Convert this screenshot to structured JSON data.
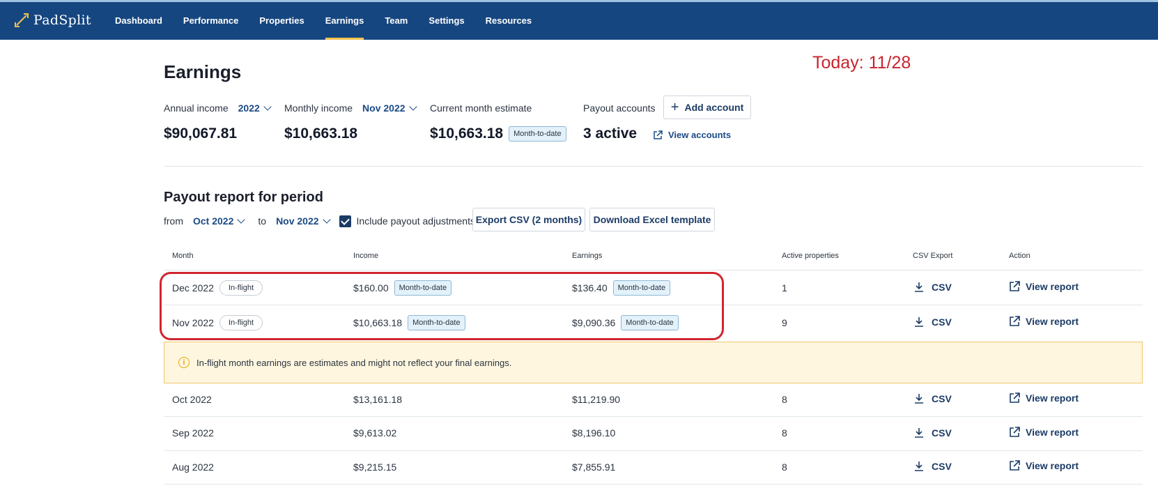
{
  "nav": {
    "brand": "PadSplit",
    "items": [
      "Dashboard",
      "Performance",
      "Properties",
      "Earnings",
      "Team",
      "Settings",
      "Resources"
    ],
    "active": "Earnings",
    "accent_color": "#f3c24e",
    "background_color": "#154680"
  },
  "header": {
    "title": "Earnings",
    "annotation": "Today: 11/28"
  },
  "stats": {
    "annual": {
      "label": "Annual income",
      "selected": "2022",
      "value": "$90,067.81"
    },
    "monthly": {
      "label": "Monthly income",
      "selected": "Nov 2022",
      "value": "$10,663.18"
    },
    "current": {
      "label": "Current month estimate",
      "value": "$10,663.18",
      "badge": "Month-to-date"
    },
    "payout": {
      "label": "Payout accounts",
      "add_button": "Add account",
      "value": "3 active",
      "view_link": "View accounts"
    }
  },
  "report": {
    "title": "Payout report for period",
    "from_label": "from",
    "from_value": "Oct 2022",
    "to_label": "to",
    "to_value": "Nov 2022",
    "include_adjustments_label": "Include payout adjustments",
    "include_adjustments_checked": true,
    "export_button": "Export CSV (2 months)",
    "template_button": "Download Excel template"
  },
  "table": {
    "columns": [
      "Month",
      "Income",
      "Earnings",
      "Active properties",
      "CSV Export",
      "Action"
    ],
    "csv_label": "CSV",
    "action_label": "View report",
    "rows": [
      {
        "month": "Dec 2022",
        "status": "In-flight",
        "income": "$160.00",
        "income_badge": "Month-to-date",
        "earnings": "$136.40",
        "earnings_badge": "Month-to-date",
        "active": "1"
      },
      {
        "month": "Nov 2022",
        "status": "In-flight",
        "income": "$10,663.18",
        "income_badge": "Month-to-date",
        "earnings": "$9,090.36",
        "earnings_badge": "Month-to-date",
        "active": "9"
      },
      {
        "month": "Oct 2022",
        "income": "$13,161.18",
        "earnings": "$11,219.90",
        "active": "8"
      },
      {
        "month": "Sep 2022",
        "income": "$9,613.02",
        "earnings": "$8,196.10",
        "active": "8"
      },
      {
        "month": "Aug 2022",
        "income": "$9,215.15",
        "earnings": "$7,855.91",
        "active": "8"
      }
    ],
    "notice": "In-flight month earnings are estimates and might not reflect your final earnings.",
    "highlight_color": "#d1252e"
  }
}
